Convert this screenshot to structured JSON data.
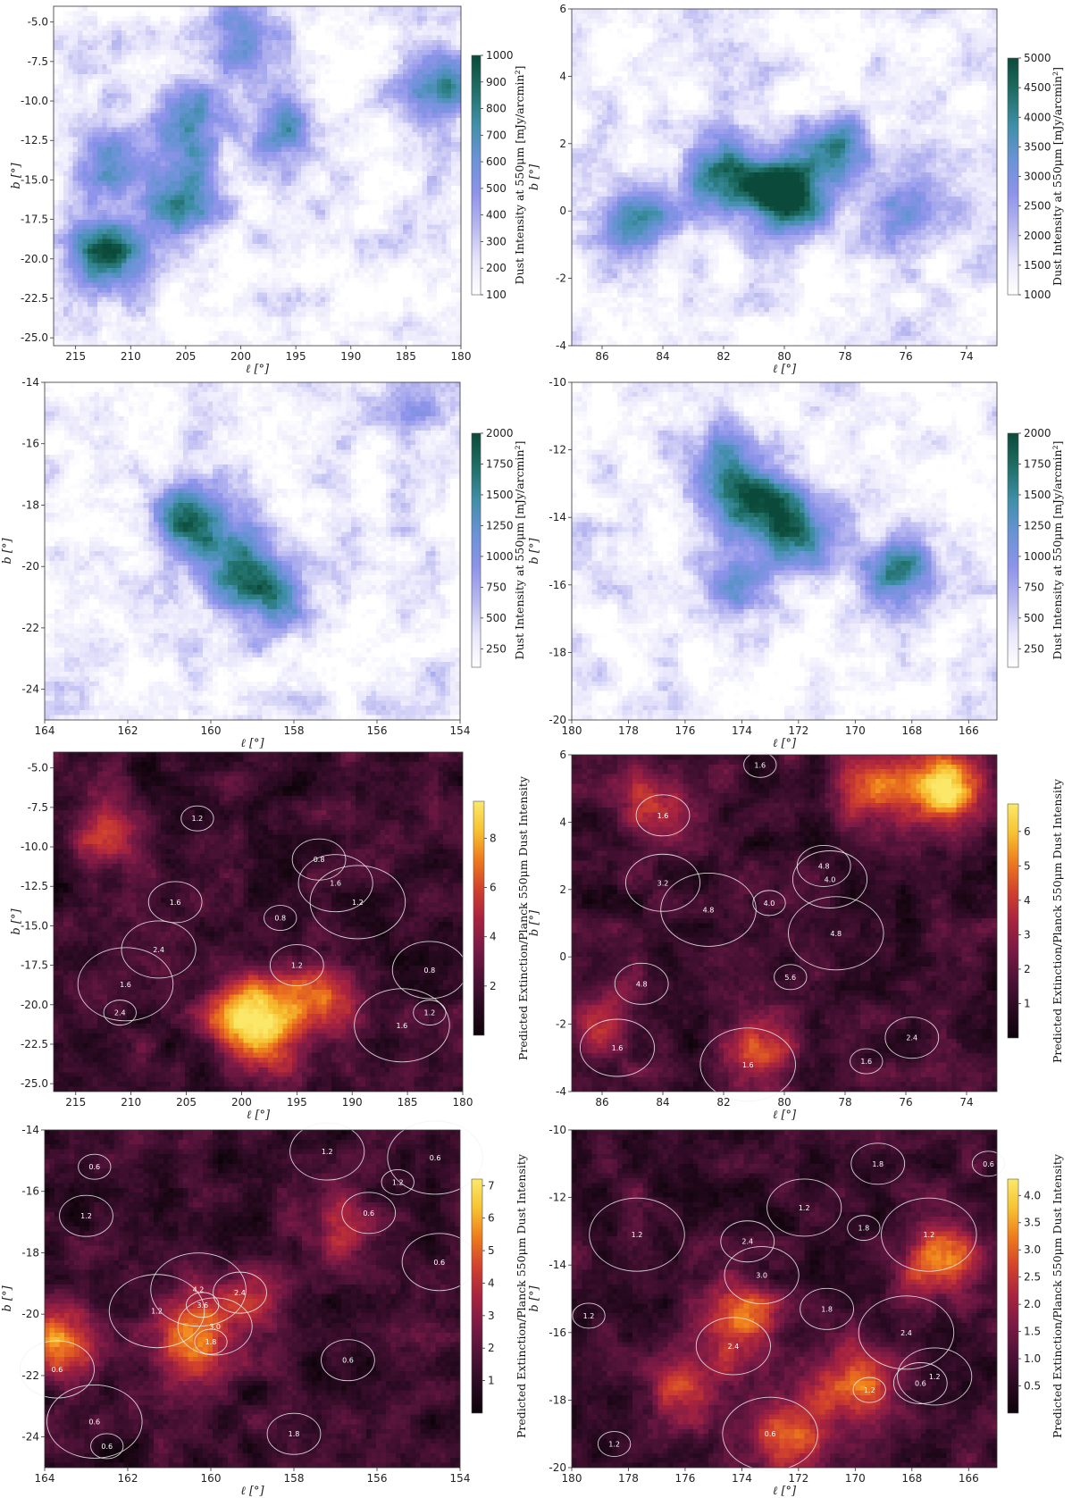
{
  "colors": {
    "dust_map": [
      "#ffffff",
      "#e8e6fb",
      "#b8b7f0",
      "#8d93ea",
      "#6a93d6",
      "#3f8fa9",
      "#1f6e66",
      "#0b4a3a"
    ],
    "ratio_map": [
      "#0d0309",
      "#2a0a22",
      "#4e1237",
      "#7a1a45",
      "#a8233f",
      "#d1412d",
      "#ee7a1c",
      "#f7c231",
      "#fbe869"
    ],
    "contour": "#f2f2f2"
  },
  "chart_data": [
    {
      "type": "heatmap",
      "panel": "row1-left",
      "xlabel": "ℓ [°]",
      "ylabel": "b [°]",
      "xlim": [
        217,
        180
      ],
      "ylim": [
        -25.5,
        -4
      ],
      "xticks": [
        "215",
        "210",
        "205",
        "200",
        "195",
        "190",
        "185",
        "180"
      ],
      "yticks": [
        "-5.0",
        "-7.5",
        "-10.0",
        "-12.5",
        "-15.0",
        "-17.5",
        "-20.0",
        "-22.5",
        "-25.0"
      ],
      "colorbar": {
        "label": "Dust Intensity at 550μm [mJy/arcmin²]",
        "range": [
          100,
          1000
        ],
        "ticks": [
          "100",
          "200",
          "300",
          "400",
          "500",
          "600",
          "700",
          "800",
          "900",
          "1000"
        ]
      },
      "features": [
        {
          "l": 212,
          "b": -19.8,
          "amp": 1.4
        },
        {
          "l": 206,
          "b": -16.5,
          "amp": 1.2
        },
        {
          "l": 205,
          "b": -11.5,
          "amp": 1.1
        },
        {
          "l": 196,
          "b": -12.0,
          "amp": 0.9
        },
        {
          "l": 182,
          "b": -9.0,
          "amp": 1.1
        },
        {
          "l": 212,
          "b": -13.5,
          "amp": 1.0
        },
        {
          "l": 200,
          "b": -6.0,
          "amp": 0.9
        }
      ]
    },
    {
      "type": "heatmap",
      "panel": "row1-right",
      "xlabel": "ℓ [°]",
      "ylabel": "b [°]",
      "xlim": [
        87,
        73
      ],
      "ylim": [
        -4,
        6
      ],
      "xticks": [
        "86",
        "84",
        "82",
        "80",
        "78",
        "76",
        "74"
      ],
      "yticks": [
        "-4",
        "-2",
        "0",
        "2",
        "4",
        "6"
      ],
      "colorbar": {
        "label": "Dust Intensity at 550μm [mJy/arcmin²]",
        "range": [
          1000,
          5000
        ],
        "ticks": [
          "1000",
          "1500",
          "2000",
          "2500",
          "3000",
          "3500",
          "4000",
          "4500",
          "5000"
        ]
      },
      "features": [
        {
          "l": 80,
          "b": 0.5,
          "amp": 1.7
        },
        {
          "l": 82,
          "b": 1.0,
          "amp": 1.3
        },
        {
          "l": 84.8,
          "b": -0.3,
          "amp": 1.1
        },
        {
          "l": 78.5,
          "b": 1.8,
          "amp": 1.1
        },
        {
          "l": 76,
          "b": 0.0,
          "amp": 0.6
        }
      ]
    },
    {
      "type": "heatmap",
      "panel": "row2-left",
      "xlabel": "ℓ [°]",
      "ylabel": "b [°]",
      "xlim": [
        164,
        154
      ],
      "ylim": [
        -25,
        -14
      ],
      "xticks": [
        "164",
        "162",
        "160",
        "158",
        "156",
        "154"
      ],
      "yticks": [
        "-24",
        "-22",
        "-20",
        "-18",
        "-16",
        "-14"
      ],
      "colorbar": {
        "label": "Dust Intensity at 550μm [mJy/arcmin²]",
        "range": [
          100,
          2000
        ],
        "ticks": [
          "250",
          "500",
          "750",
          "1000",
          "1250",
          "1500",
          "1750",
          "2000"
        ]
      },
      "features": [
        {
          "l": 160.5,
          "b": -18.3,
          "amp": 1.4
        },
        {
          "l": 159.5,
          "b": -19.8,
          "amp": 1.1
        },
        {
          "l": 158.5,
          "b": -21.0,
          "amp": 1.1
        },
        {
          "l": 155,
          "b": -14.8,
          "amp": 0.6
        }
      ]
    },
    {
      "type": "heatmap",
      "panel": "row2-right",
      "xlabel": "ℓ [°]",
      "ylabel": "b [°]",
      "xlim": [
        180,
        165
      ],
      "ylim": [
        -20,
        -10
      ],
      "xticks": [
        "180",
        "178",
        "176",
        "174",
        "172",
        "170",
        "168",
        "166"
      ],
      "yticks": [
        "-20",
        "-18",
        "-16",
        "-14",
        "-12",
        "-10"
      ],
      "colorbar": {
        "label": "Dust Intensity at 550μm [mJy/arcmin²]",
        "range": [
          100,
          2000
        ],
        "ticks": [
          "250",
          "500",
          "750",
          "1000",
          "1250",
          "1500",
          "1750",
          "2000"
        ]
      },
      "features": [
        {
          "l": 173.5,
          "b": -13.5,
          "amp": 1.4
        },
        {
          "l": 172,
          "b": -14.5,
          "amp": 0.9
        },
        {
          "l": 168.5,
          "b": -15.7,
          "amp": 1.1
        },
        {
          "l": 174,
          "b": -16.0,
          "amp": 0.9
        },
        {
          "l": 175,
          "b": -12.3,
          "amp": 0.7
        }
      ]
    },
    {
      "type": "heatmap",
      "panel": "row3-left",
      "xlabel": "ℓ [°]",
      "ylabel": "b [°]",
      "xlim": [
        217,
        180
      ],
      "ylim": [
        -25.5,
        -4
      ],
      "xticks": [
        "215",
        "210",
        "205",
        "200",
        "195",
        "190",
        "185",
        "180"
      ],
      "yticks": [
        "-5.0",
        "-7.5",
        "-10.0",
        "-12.5",
        "-15.0",
        "-17.5",
        "-20.0",
        "-22.5",
        "-25.0"
      ],
      "colorbar": {
        "label": "Predicted Extinction/Planck 550μm Dust Intensity",
        "range": [
          0,
          9.5
        ],
        "ticks": [
          "2",
          "4",
          "6",
          "8"
        ]
      },
      "features": [
        {
          "l": 200,
          "b": -20.5,
          "amp": 1.3
        },
        {
          "l": 193,
          "b": -19.5,
          "amp": 0.9
        },
        {
          "l": 212,
          "b": -9.3,
          "amp": 0.8
        },
        {
          "l": 197,
          "b": -22.0,
          "amp": 0.8
        }
      ],
      "contour_labels": [
        {
          "text": "1.2",
          "l": 204,
          "b": -8.2
        },
        {
          "text": "1.6",
          "l": 206,
          "b": -13.5
        },
        {
          "text": "2.4",
          "l": 207.5,
          "b": -16.5
        },
        {
          "text": "1.6",
          "l": 210.5,
          "b": -18.7
        },
        {
          "text": "2.4",
          "l": 211,
          "b": -20.5
        },
        {
          "text": "0.8",
          "l": 193,
          "b": -10.8
        },
        {
          "text": "1.6",
          "l": 191.5,
          "b": -12.3
        },
        {
          "text": "1.2",
          "l": 189.5,
          "b": -13.5
        },
        {
          "text": "0.8",
          "l": 196.5,
          "b": -14.5
        },
        {
          "text": "1.2",
          "l": 195,
          "b": -17.5
        },
        {
          "text": "0.8",
          "l": 183,
          "b": -17.8
        },
        {
          "text": "1.6",
          "l": 185.5,
          "b": -21.3
        },
        {
          "text": "1.2",
          "l": 183,
          "b": -20.5
        }
      ]
    },
    {
      "type": "heatmap",
      "panel": "row3-right",
      "xlabel": "ℓ [°]",
      "ylabel": "b [°]",
      "xlim": [
        87,
        73
      ],
      "ylim": [
        -4,
        6
      ],
      "xticks": [
        "86",
        "84",
        "82",
        "80",
        "78",
        "76",
        "74"
      ],
      "yticks": [
        "-4",
        "-2",
        "0",
        "2",
        "4",
        "6"
      ],
      "colorbar": {
        "label": "Predicted Extinction/Planck 550μm Dust Intensity",
        "range": [
          0,
          6.8
        ],
        "ticks": [
          "1",
          "2",
          "3",
          "4",
          "5",
          "6"
        ]
      },
      "features": [
        {
          "l": 74.5,
          "b": 5.0,
          "amp": 1.4
        },
        {
          "l": 77,
          "b": 5.0,
          "amp": 1.0
        },
        {
          "l": 84,
          "b": 4.5,
          "amp": 0.8
        },
        {
          "l": 81,
          "b": -3.0,
          "amp": 0.8
        },
        {
          "l": 86,
          "b": -2.0,
          "amp": 0.6
        }
      ],
      "contour_labels": [
        {
          "text": "1.6",
          "l": 80.8,
          "b": 5.7
        },
        {
          "text": "1.6",
          "l": 84,
          "b": 4.2
        },
        {
          "text": "3.2",
          "l": 84,
          "b": 2.2
        },
        {
          "text": "4.8",
          "l": 82.5,
          "b": 1.4
        },
        {
          "text": "4.0",
          "l": 80.5,
          "b": 1.6
        },
        {
          "text": "4.8",
          "l": 78.7,
          "b": 2.7
        },
        {
          "text": "4.0",
          "l": 78.5,
          "b": 2.3
        },
        {
          "text": "4.8",
          "l": 78.3,
          "b": 0.7
        },
        {
          "text": "5.6",
          "l": 79.8,
          "b": -0.6
        },
        {
          "text": "4.8",
          "l": 84.7,
          "b": -0.8
        },
        {
          "text": "1.6",
          "l": 85.5,
          "b": -2.7
        },
        {
          "text": "1.6",
          "l": 81.2,
          "b": -3.2
        },
        {
          "text": "1.6",
          "l": 77.3,
          "b": -3.1
        },
        {
          "text": "2.4",
          "l": 75.8,
          "b": -2.4
        }
      ]
    },
    {
      "type": "heatmap",
      "panel": "row4-left",
      "xlabel": "ℓ [°]",
      "ylabel": "b [°]",
      "xlim": [
        164,
        154
      ],
      "ylim": [
        -25,
        -14
      ],
      "xticks": [
        "164",
        "162",
        "160",
        "158",
        "156",
        "154"
      ],
      "yticks": [
        "-24",
        "-22",
        "-20",
        "-18",
        "-16",
        "-14"
      ],
      "colorbar": {
        "label": "Predicted Extinction/Planck 550μm Dust Intensity",
        "range": [
          0,
          7.2
        ],
        "ticks": [
          "1",
          "2",
          "3",
          "4",
          "5",
          "6",
          "7"
        ]
      },
      "features": [
        {
          "l": 163.5,
          "b": -21.0,
          "amp": 1.1
        },
        {
          "l": 160.5,
          "b": -20.8,
          "amp": 1.2
        },
        {
          "l": 159,
          "b": -19.5,
          "amp": 0.7
        },
        {
          "l": 157,
          "b": -17.0,
          "amp": 0.6
        }
      ],
      "contour_labels": [
        {
          "text": "0.6",
          "l": 162.8,
          "b": -15.2
        },
        {
          "text": "1.2",
          "l": 163,
          "b": -16.8
        },
        {
          "text": "1.2",
          "l": 157.2,
          "b": -14.7
        },
        {
          "text": "0.6",
          "l": 154.6,
          "b": -14.9
        },
        {
          "text": "1.2",
          "l": 155.5,
          "b": -15.7
        },
        {
          "text": "0.6",
          "l": 156.2,
          "b": -16.7
        },
        {
          "text": "0.6",
          "l": 154.5,
          "b": -18.3
        },
        {
          "text": "4.2",
          "l": 160.3,
          "b": -19.2
        },
        {
          "text": "3.6",
          "l": 160.2,
          "b": -19.7
        },
        {
          "text": "2.4",
          "l": 159.3,
          "b": -19.3
        },
        {
          "text": "3.0",
          "l": 159.9,
          "b": -20.4
        },
        {
          "text": "1.2",
          "l": 161.3,
          "b": -19.9
        },
        {
          "text": "1.8",
          "l": 160,
          "b": -20.9
        },
        {
          "text": "0.6",
          "l": 156.7,
          "b": -21.5
        },
        {
          "text": "0.6",
          "l": 163.7,
          "b": -21.8
        },
        {
          "text": "0.6",
          "l": 162.8,
          "b": -23.5
        },
        {
          "text": "0.6",
          "l": 162.5,
          "b": -24.3
        },
        {
          "text": "1.8",
          "l": 158,
          "b": -23.9
        }
      ]
    },
    {
      "type": "heatmap",
      "panel": "row4-right",
      "xlabel": "ℓ [°]",
      "ylabel": "b [°]",
      "xlim": [
        180,
        165
      ],
      "ylim": [
        -20,
        -10
      ],
      "xticks": [
        "180",
        "178",
        "176",
        "174",
        "172",
        "170",
        "168",
        "166"
      ],
      "yticks": [
        "-20",
        "-18",
        "-16",
        "-14",
        "-12",
        "-10"
      ],
      "colorbar": {
        "label": "Predicted Extinction/Planck 550μm Dust Intensity",
        "range": [
          0,
          4.3
        ],
        "ticks": [
          "0.5",
          "1.0",
          "1.5",
          "2.0",
          "2.5",
          "3.0",
          "3.5",
          "4.0"
        ]
      },
      "features": [
        {
          "l": 167,
          "b": -13.8,
          "amp": 1.2
        },
        {
          "l": 170,
          "b": -17.5,
          "amp": 1.2
        },
        {
          "l": 174,
          "b": -15.7,
          "amp": 1.0
        },
        {
          "l": 172.5,
          "b": -19.0,
          "amp": 1.1
        },
        {
          "l": 176,
          "b": -17.5,
          "amp": 0.8
        }
      ],
      "contour_labels": [
        {
          "text": "0.6",
          "l": 165.3,
          "b": -11.0
        },
        {
          "text": "1.8",
          "l": 169.2,
          "b": -11.0
        },
        {
          "text": "1.2",
          "l": 171.8,
          "b": -12.3
        },
        {
          "text": "1.2",
          "l": 177.7,
          "b": -13.1
        },
        {
          "text": "1.8",
          "l": 169.7,
          "b": -12.9
        },
        {
          "text": "2.4",
          "l": 173.8,
          "b": -13.3
        },
        {
          "text": "3.0",
          "l": 173.3,
          "b": -14.3
        },
        {
          "text": "1.2",
          "l": 167.4,
          "b": -13.1
        },
        {
          "text": "1.2",
          "l": 179.4,
          "b": -15.5
        },
        {
          "text": "1.8",
          "l": 171,
          "b": -15.3
        },
        {
          "text": "2.4",
          "l": 174.3,
          "b": -16.4
        },
        {
          "text": "2.4",
          "l": 168.2,
          "b": -16.0
        },
        {
          "text": "1.2",
          "l": 169.5,
          "b": -17.7
        },
        {
          "text": "0.6",
          "l": 167.7,
          "b": -17.5
        },
        {
          "text": "1.2",
          "l": 167.2,
          "b": -17.3
        },
        {
          "text": "0.6",
          "l": 173,
          "b": -19.0
        },
        {
          "text": "1.2",
          "l": 178.5,
          "b": -19.3
        }
      ]
    }
  ]
}
